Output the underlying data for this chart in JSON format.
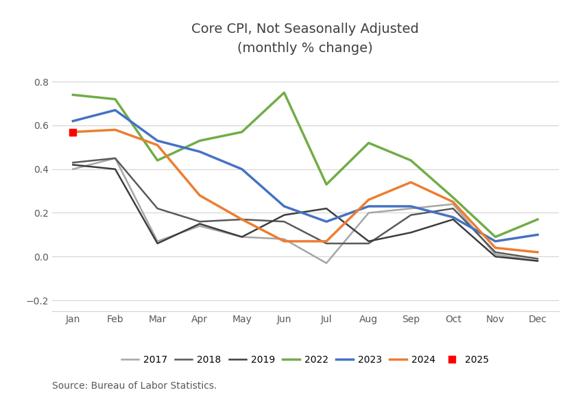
{
  "title": "Core CPI, Not Seasonally Adjusted",
  "subtitle": "(monthly % change)",
  "source": "Source: Bureau of Labor Statistics.",
  "months": [
    "Jan",
    "Feb",
    "Mar",
    "Apr",
    "May",
    "Jun",
    "Jul",
    "Aug",
    "Sep",
    "Oct",
    "Nov",
    "Dec"
  ],
  "series": {
    "2017": {
      "color": "#a5a5a5",
      "linewidth": 1.8,
      "data": [
        0.4,
        0.45,
        0.07,
        0.14,
        0.09,
        0.08,
        -0.03,
        0.2,
        0.22,
        0.24,
        0.01,
        -0.02
      ]
    },
    "2018": {
      "color": "#595959",
      "linewidth": 1.8,
      "data": [
        0.43,
        0.45,
        0.22,
        0.16,
        0.17,
        0.16,
        0.06,
        0.06,
        0.19,
        0.22,
        0.02,
        -0.01
      ]
    },
    "2019": {
      "color": "#3d3d3d",
      "linewidth": 1.8,
      "data": [
        0.42,
        0.4,
        0.06,
        0.15,
        0.09,
        0.19,
        0.22,
        0.07,
        0.11,
        0.17,
        0.0,
        -0.02
      ]
    },
    "2022": {
      "color": "#70ad47",
      "linewidth": 2.5,
      "data": [
        0.74,
        0.72,
        0.44,
        0.53,
        0.57,
        0.75,
        0.33,
        0.52,
        0.44,
        0.27,
        0.09,
        0.17
      ]
    },
    "2023": {
      "color": "#4472c4",
      "linewidth": 2.5,
      "data": [
        0.62,
        0.67,
        0.53,
        0.48,
        0.4,
        0.23,
        0.16,
        0.23,
        0.23,
        0.18,
        0.07,
        0.1
      ]
    },
    "2024": {
      "color": "#ed7d31",
      "linewidth": 2.5,
      "data": [
        0.57,
        0.58,
        0.51,
        0.28,
        0.17,
        0.07,
        0.07,
        0.26,
        0.34,
        0.25,
        0.04,
        0.02
      ]
    },
    "2025": {
      "color": "#ff0000",
      "linewidth": 1.8,
      "data": [
        0.57,
        null,
        null,
        null,
        null,
        null,
        null,
        null,
        null,
        null,
        null,
        null
      ],
      "marker": "s",
      "markersize": 7
    }
  },
  "ylim": [
    -0.25,
    0.9
  ],
  "yticks": [
    -0.2,
    0.0,
    0.2,
    0.4,
    0.6,
    0.8
  ],
  "legend_order": [
    "2017",
    "2018",
    "2019",
    "2022",
    "2023",
    "2024",
    "2025"
  ],
  "background_color": "#ffffff",
  "grid_color": "#d3d3d3",
  "title_fontsize": 14,
  "tick_fontsize": 10,
  "legend_fontsize": 10,
  "source_fontsize": 10
}
